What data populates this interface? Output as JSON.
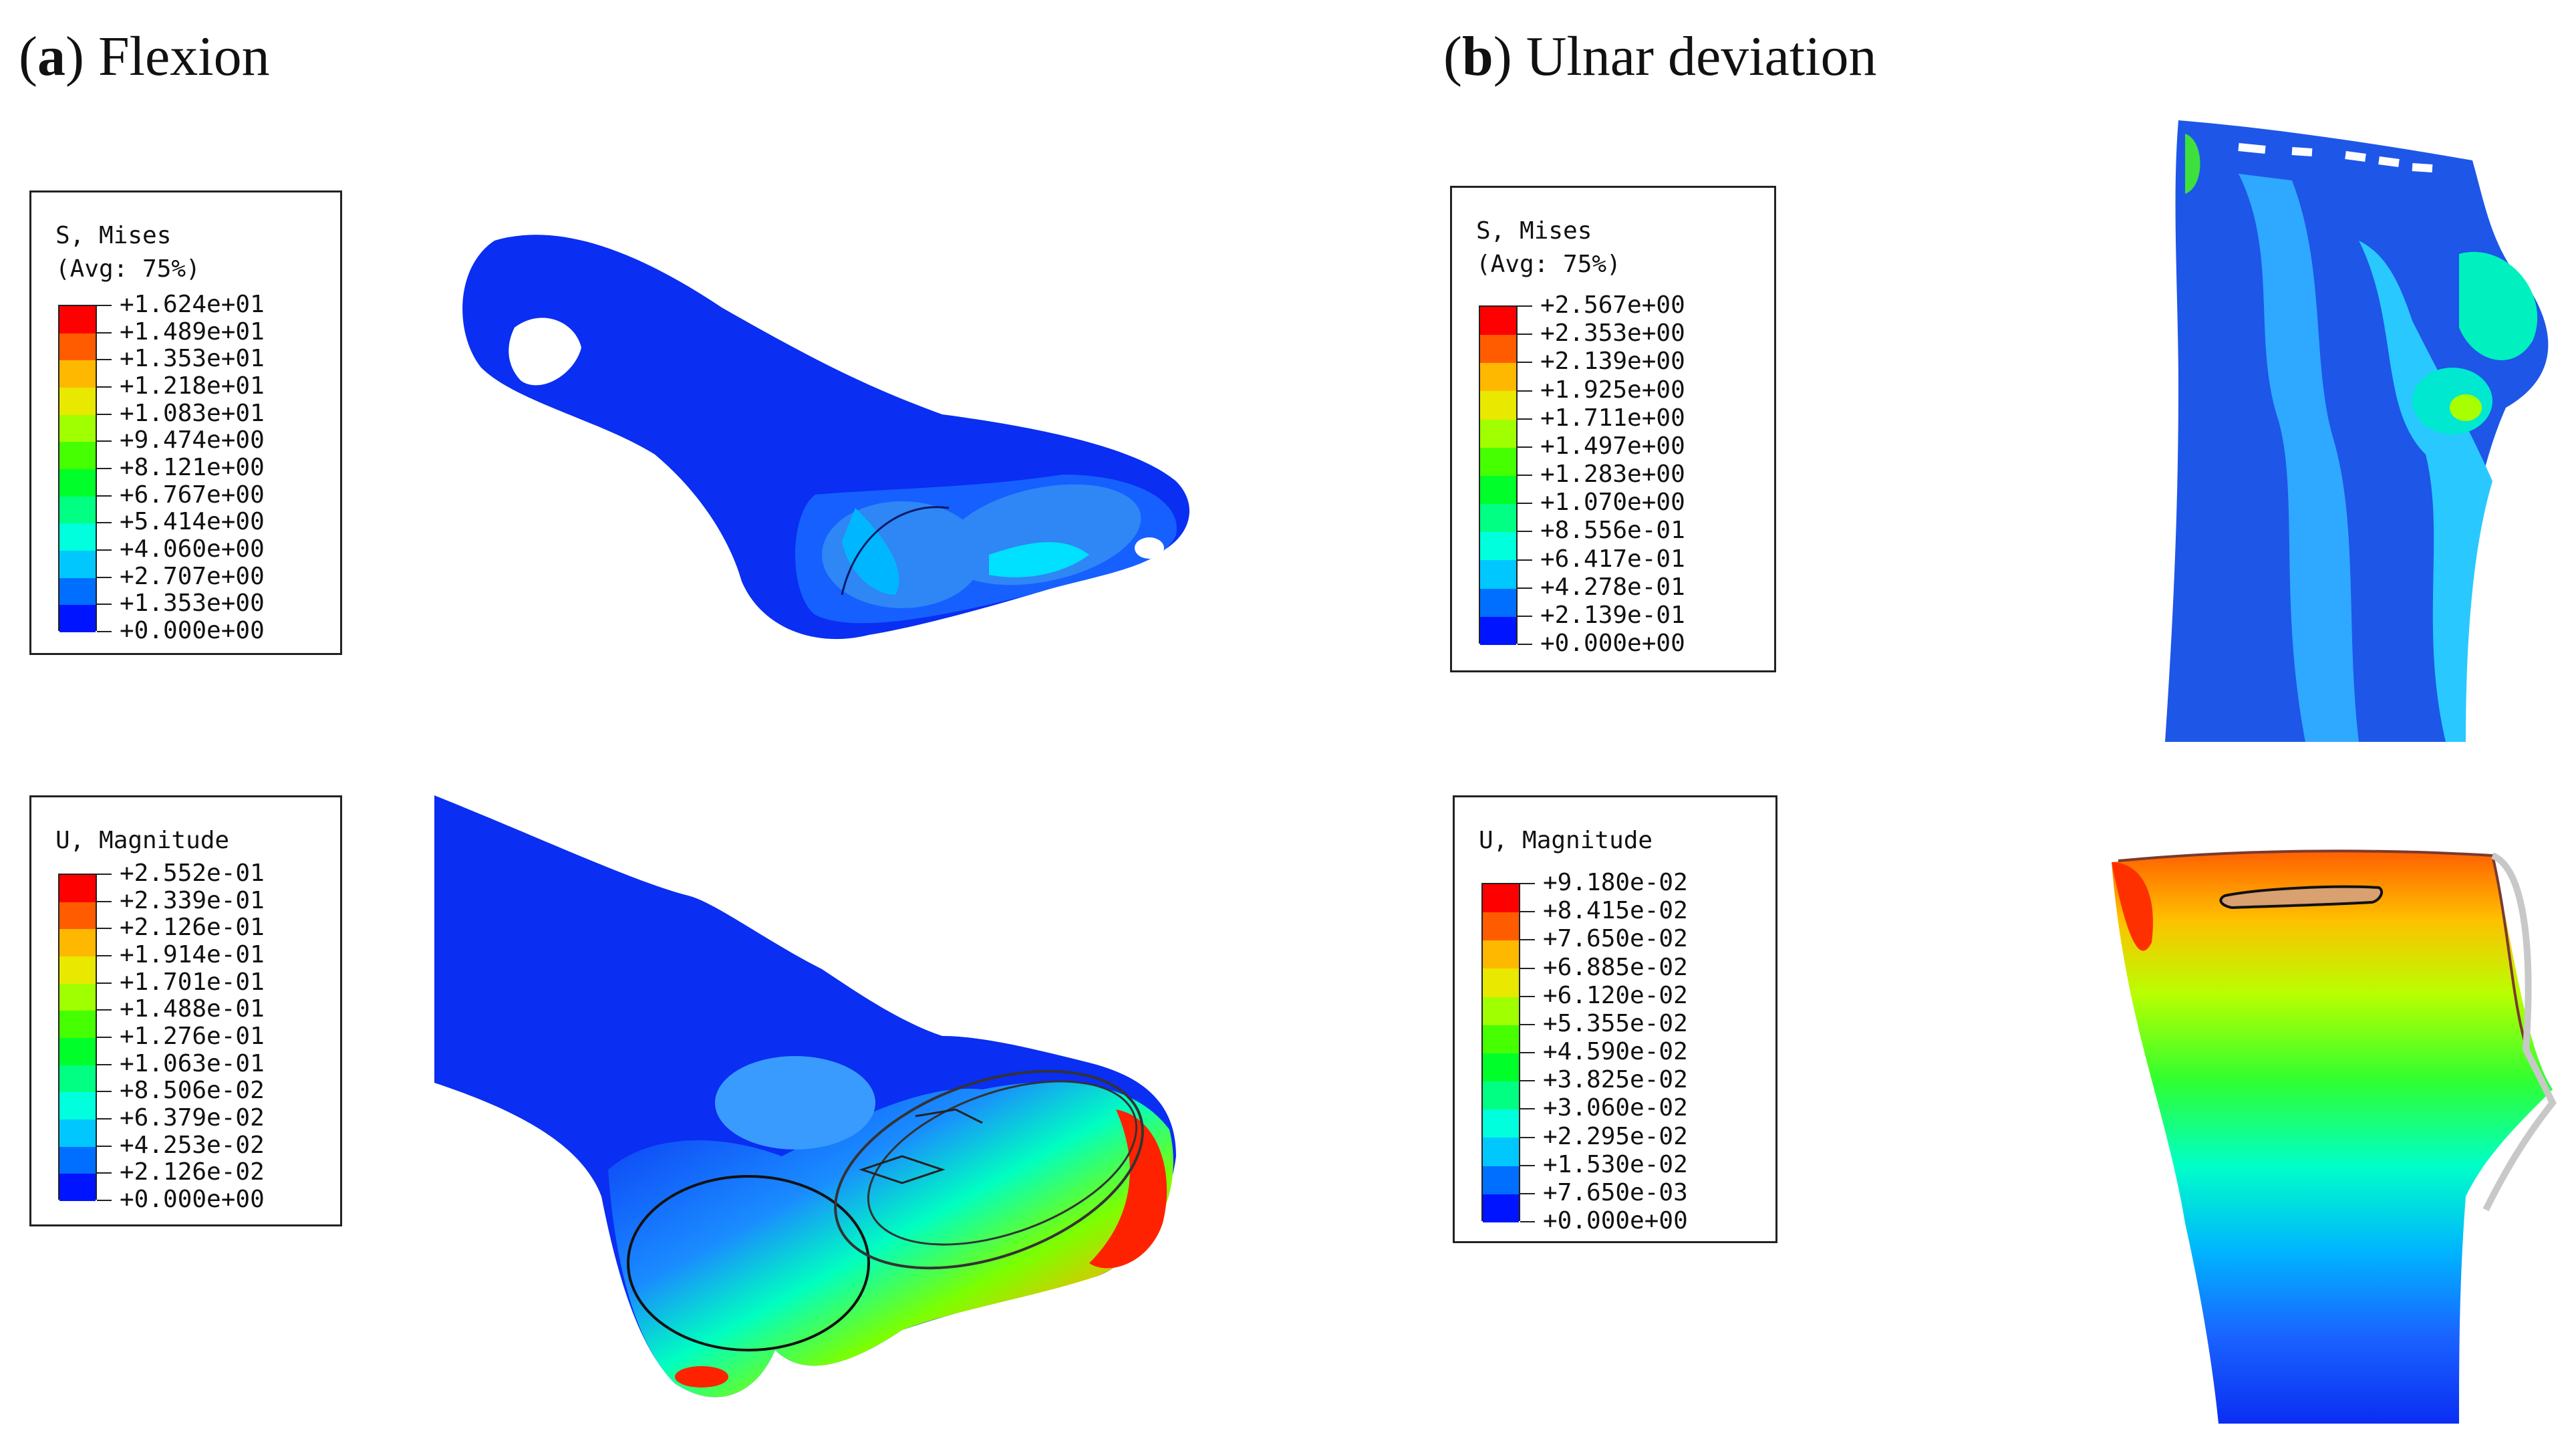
{
  "panels": {
    "a": {
      "letter": "a",
      "title": "Flexion"
    },
    "b": {
      "letter": "b",
      "title": "Ulnar deviation"
    }
  },
  "legends": {
    "a_stress": {
      "title": "S, Mises",
      "subtitle": "(Avg: 75%)",
      "values": [
        "+1.624e+01",
        "+1.489e+01",
        "+1.353e+01",
        "+1.218e+01",
        "+1.083e+01",
        "+9.474e+00",
        "+8.121e+00",
        "+6.767e+00",
        "+5.414e+00",
        "+4.060e+00",
        "+2.707e+00",
        "+1.353e+00",
        "+0.000e+00"
      ]
    },
    "a_disp": {
      "title": "U, Magnitude",
      "values": [
        "+2.552e-01",
        "+2.339e-01",
        "+2.126e-01",
        "+1.914e-01",
        "+1.701e-01",
        "+1.488e-01",
        "+1.276e-01",
        "+1.063e-01",
        "+8.506e-02",
        "+6.379e-02",
        "+4.253e-02",
        "+2.126e-02",
        "+0.000e+00"
      ]
    },
    "b_stress": {
      "title": "S, Mises",
      "subtitle": "(Avg: 75%)",
      "values": [
        "+2.567e+00",
        "+2.353e+00",
        "+2.139e+00",
        "+1.925e+00",
        "+1.711e+00",
        "+1.497e+00",
        "+1.283e+00",
        "+1.070e+00",
        "+8.556e-01",
        "+6.417e-01",
        "+4.278e-01",
        "+2.139e-01",
        "+0.000e+00"
      ]
    },
    "b_disp": {
      "title": "U, Magnitude",
      "values": [
        "+9.180e-02",
        "+8.415e-02",
        "+7.650e-02",
        "+6.885e-02",
        "+6.120e-02",
        "+5.355e-02",
        "+4.590e-02",
        "+3.825e-02",
        "+3.060e-02",
        "+2.295e-02",
        "+1.530e-02",
        "+7.650e-03",
        "+0.000e+00"
      ]
    }
  },
  "colormap": [
    "#ff0000",
    "#ff5c00",
    "#ffb800",
    "#e8e800",
    "#a0ff00",
    "#46ff00",
    "#00ff2a",
    "#00ff82",
    "#00ffdc",
    "#00c8ff",
    "#006eff",
    "#0014ff"
  ],
  "colors": {
    "low": "#0014ff",
    "mid": "#00ffdc",
    "high": "#ff0000",
    "frame": "#222222"
  }
}
